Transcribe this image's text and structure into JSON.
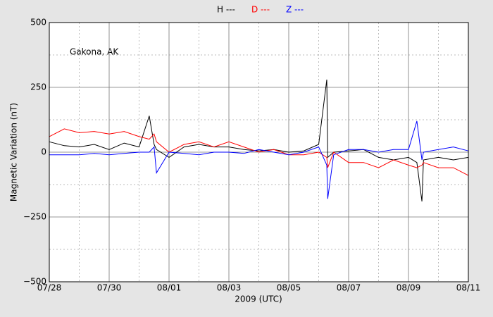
{
  "chart_data": {
    "type": "line",
    "annotation": "Gakona, AK",
    "xlabel": "2009 (UTC)",
    "ylabel": "Magnetic Variation (nT)",
    "x": [
      0,
      0.5,
      1,
      1.5,
      2,
      2.5,
      3,
      3.34,
      3.5,
      3.58,
      4,
      4.5,
      5,
      5.5,
      6,
      6.5,
      7,
      7.5,
      8,
      8.5,
      9,
      9.27,
      9.3,
      9.5,
      10,
      10.5,
      11,
      11.5,
      12,
      12.28,
      12.45,
      12.5,
      13,
      13.5,
      14
    ],
    "series": [
      {
        "name": "H ---",
        "color": "#000000",
        "values": [
          40,
          25,
          20,
          30,
          10,
          35,
          20,
          140,
          30,
          10,
          -20,
          20,
          30,
          20,
          20,
          10,
          5,
          10,
          0,
          5,
          30,
          280,
          -20,
          0,
          5,
          10,
          -20,
          -30,
          -20,
          -40,
          -190,
          -30,
          -20,
          -30,
          -20
        ]
      },
      {
        "name": "D ---",
        "color": "#ff0000",
        "values": [
          60,
          90,
          75,
          80,
          70,
          80,
          60,
          50,
          70,
          40,
          0,
          30,
          40,
          20,
          40,
          20,
          0,
          10,
          -10,
          -10,
          0,
          -20,
          -60,
          0,
          -40,
          -40,
          -60,
          -30,
          -50,
          -60,
          -50,
          -40,
          -60,
          -60,
          -90
        ]
      },
      {
        "name": "Z ---",
        "color": "#0000ff",
        "values": [
          -10,
          -10,
          -10,
          -5,
          -10,
          -5,
          0,
          0,
          20,
          -80,
          0,
          -5,
          -10,
          0,
          0,
          -5,
          10,
          0,
          -10,
          0,
          20,
          -50,
          -180,
          -10,
          10,
          10,
          0,
          10,
          10,
          120,
          -30,
          0,
          10,
          20,
          5
        ]
      }
    ],
    "xlim": [
      0,
      14
    ],
    "xticks": [
      {
        "value": 0,
        "label": "07/28"
      },
      {
        "value": 2,
        "label": "07/30"
      },
      {
        "value": 4,
        "label": "08/01"
      },
      {
        "value": 6,
        "label": "08/03"
      },
      {
        "value": 8,
        "label": "08/05"
      },
      {
        "value": 10,
        "label": "08/07"
      },
      {
        "value": 12,
        "label": "08/09"
      },
      {
        "value": 14,
        "label": "08/11"
      }
    ],
    "xminorticks": [
      1,
      3,
      5,
      7,
      9,
      11,
      13
    ],
    "ylim": [
      -500,
      500
    ],
    "yticks": [
      {
        "value": -500,
        "label": "−500"
      },
      {
        "value": -250,
        "label": "−250"
      },
      0,
      250,
      500
    ],
    "yminorticks": [
      -375,
      -125,
      125,
      375
    ],
    "grid": true
  }
}
